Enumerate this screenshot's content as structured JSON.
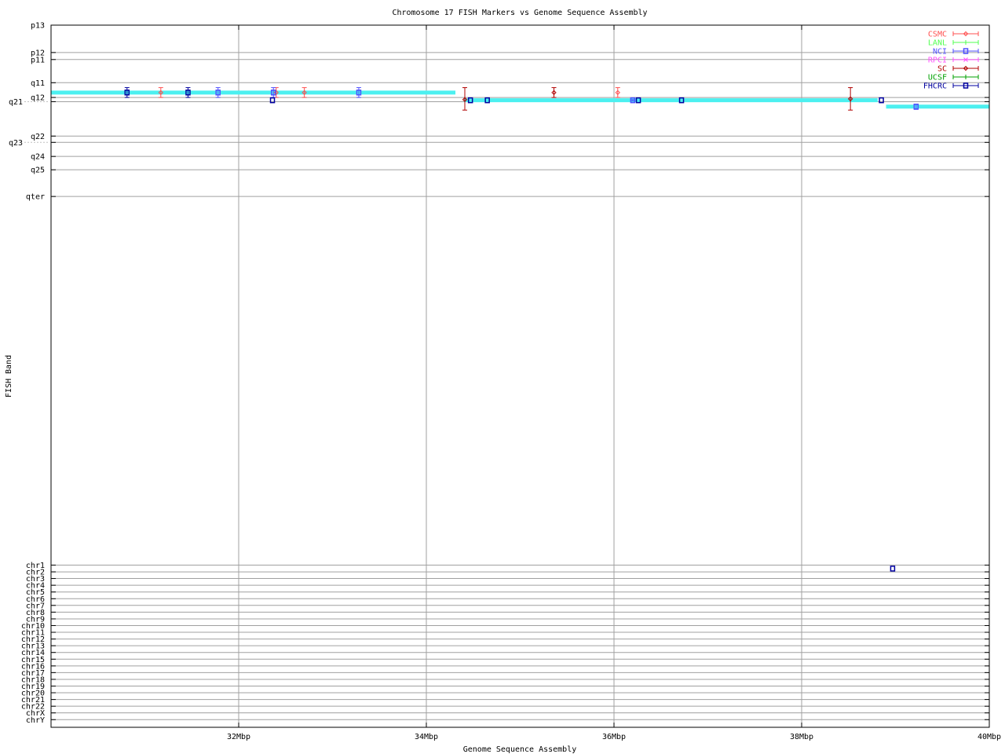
{
  "chart_data": {
    "type": "scatter",
    "title": "Chromosome 17 FISH Markers vs Genome Sequence Assembly",
    "xlabel": "Genome Sequence Assembly",
    "ylabel": "FISH Band",
    "xlim": [
      30,
      40
    ],
    "ylim": [
      0,
      100
    ],
    "y_reversed": true,
    "grid": true,
    "legend_position": "top-right",
    "xticks": [
      {
        "value": 32,
        "label": "32Mbp"
      },
      {
        "value": 34,
        "label": "34Mbp"
      },
      {
        "value": 36,
        "label": "36Mbp"
      },
      {
        "value": 38,
        "label": "38Mbp"
      },
      {
        "value": 40,
        "label": "40Mbp"
      }
    ],
    "yticks": [
      {
        "value": 0,
        "label": "p13"
      },
      {
        "value": 3.9,
        "label": "p12"
      },
      {
        "value": 4.9,
        "label": "p11"
      },
      {
        "value": 8.2,
        "label": "q11"
      },
      {
        "value": 10.3,
        "label": "q12"
      },
      {
        "value": 10.9,
        "label": "q21"
      },
      {
        "value": 15.8,
        "label": "q22"
      },
      {
        "value": 16.7,
        "label": "q23"
      },
      {
        "value": 18.7,
        "label": "q24"
      },
      {
        "value": 20.6,
        "label": "q25"
      },
      {
        "value": 24.4,
        "label": "qter"
      },
      {
        "value": 76.9,
        "label": "chr1"
      },
      {
        "value": 77.86,
        "label": "chr2"
      },
      {
        "value": 78.81,
        "label": "chr3"
      },
      {
        "value": 79.77,
        "label": "chr4"
      },
      {
        "value": 80.73,
        "label": "chr5"
      },
      {
        "value": 81.69,
        "label": "chr6"
      },
      {
        "value": 82.64,
        "label": "chr7"
      },
      {
        "value": 83.6,
        "label": "chr8"
      },
      {
        "value": 84.56,
        "label": "chr9"
      },
      {
        "value": 85.51,
        "label": "chr10"
      },
      {
        "value": 86.47,
        "label": "chr11"
      },
      {
        "value": 87.43,
        "label": "chr12"
      },
      {
        "value": 88.38,
        "label": "chr13"
      },
      {
        "value": 89.34,
        "label": "chr14"
      },
      {
        "value": 90.3,
        "label": "chr15"
      },
      {
        "value": 91.26,
        "label": "chr16"
      },
      {
        "value": 92.21,
        "label": "chr17"
      },
      {
        "value": 93.17,
        "label": "chr18"
      },
      {
        "value": 94.13,
        "label": "chr19"
      },
      {
        "value": 95.08,
        "label": "chr20"
      },
      {
        "value": 96.04,
        "label": "chr21"
      },
      {
        "value": 97.0,
        "label": "chr22"
      },
      {
        "value": 97.95,
        "label": "chrX"
      },
      {
        "value": 98.91,
        "label": "chrY"
      }
    ],
    "assembly_segments": {
      "color": "#4cf0f0",
      "segments": [
        {
          "x0": 30.0,
          "x1": 34.31,
          "y": 9.6
        },
        {
          "x0": 34.4,
          "x1": 38.81,
          "y": 10.7
        },
        {
          "x0": 38.9,
          "x1": 40.0,
          "y": 11.6
        }
      ]
    },
    "series": [
      {
        "name": "CSMC",
        "color": "#ff5050",
        "marker": "diamond",
        "points": [
          {
            "x": 31.17,
            "y": 9.6,
            "ylo": 8.9,
            "yhi": 10.3
          },
          {
            "x": 32.4,
            "y": 9.6,
            "ylo": 8.9,
            "yhi": 10.3
          },
          {
            "x": 32.7,
            "y": 9.6,
            "ylo": 8.9,
            "yhi": 10.3
          },
          {
            "x": 36.04,
            "y": 9.6,
            "ylo": 8.9,
            "yhi": 10.3
          }
        ]
      },
      {
        "name": "LANL",
        "color": "#50ff50",
        "marker": "plus",
        "points": []
      },
      {
        "name": "NCI",
        "color": "#5050ff",
        "marker": "square",
        "points": [
          {
            "x": 31.78,
            "y": 9.6,
            "ylo": 8.9,
            "yhi": 10.3
          },
          {
            "x": 32.37,
            "y": 9.6,
            "ylo": 8.9,
            "yhi": 10.3
          },
          {
            "x": 33.28,
            "y": 9.6,
            "ylo": 8.9,
            "yhi": 10.3
          },
          {
            "x": 36.2,
            "y": 10.7,
            "ylo": 10.6,
            "yhi": 10.8
          },
          {
            "x": 39.22,
            "y": 11.6,
            "ylo": 11.3,
            "yhi": 12.0
          }
        ]
      },
      {
        "name": "RPCI",
        "color": "#ff50ff",
        "marker": "cross",
        "points": []
      },
      {
        "name": "SC",
        "color": "#b00000",
        "marker": "diamond",
        "points": [
          {
            "x": 34.41,
            "y": 10.6,
            "ylo": 8.9,
            "yhi": 12.1
          },
          {
            "x": 35.36,
            "y": 9.6,
            "ylo": 8.9,
            "yhi": 10.3
          },
          {
            "x": 38.52,
            "y": 10.5,
            "ylo": 8.9,
            "yhi": 12.1
          }
        ]
      },
      {
        "name": "UCSF",
        "color": "#00a000",
        "marker": "plus",
        "points": []
      },
      {
        "name": "FHCRC",
        "color": "#0000a0",
        "marker": "square",
        "points": [
          {
            "x": 30.81,
            "y": 9.6,
            "ylo": 8.9,
            "yhi": 10.3
          },
          {
            "x": 31.46,
            "y": 9.6,
            "ylo": 8.9,
            "yhi": 10.3
          },
          {
            "x": 32.36,
            "y": 10.7,
            "ylo": 10.7,
            "yhi": 10.7
          },
          {
            "x": 34.47,
            "y": 10.7,
            "ylo": 10.7,
            "yhi": 10.7
          },
          {
            "x": 34.65,
            "y": 10.7,
            "ylo": 10.7,
            "yhi": 10.7
          },
          {
            "x": 36.26,
            "y": 10.7,
            "ylo": 10.7,
            "yhi": 10.7
          },
          {
            "x": 36.72,
            "y": 10.7,
            "ylo": 10.7,
            "yhi": 10.7
          },
          {
            "x": 38.85,
            "y": 10.7,
            "ylo": 10.7,
            "yhi": 10.7
          },
          {
            "x": 38.97,
            "y": 77.4,
            "ylo": 77.4,
            "yhi": 77.4
          }
        ]
      }
    ]
  }
}
